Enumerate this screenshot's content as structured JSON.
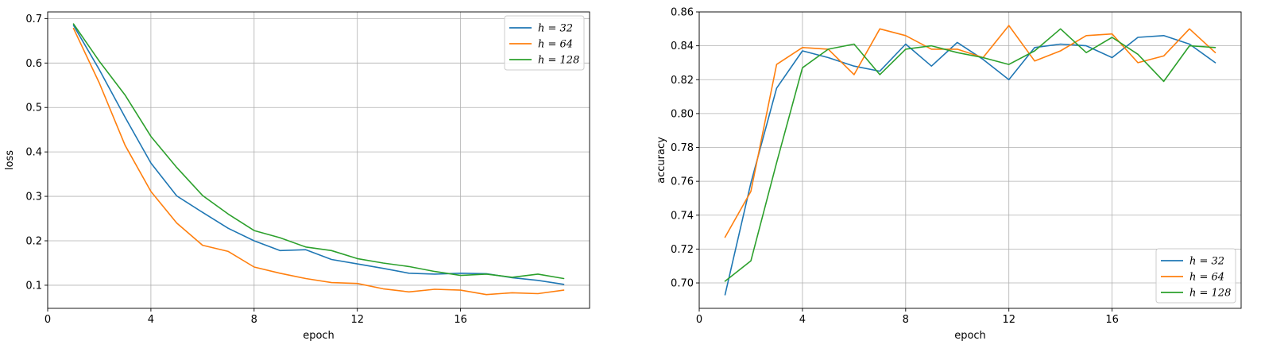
{
  "chart_data": [
    {
      "type": "line",
      "xlabel": "epoch",
      "ylabel": "loss",
      "xlim": [
        0,
        21
      ],
      "ylim": [
        0.048,
        0.715
      ],
      "xticks": [
        0,
        4,
        8,
        12,
        16
      ],
      "xtick_labels": [
        "0",
        "4",
        "8",
        "12",
        "16"
      ],
      "yticks": [
        0.1,
        0.2,
        0.3,
        0.4,
        0.5,
        0.6,
        0.7
      ],
      "ytick_labels": [
        "0.1",
        "0.2",
        "0.3",
        "0.4",
        "0.5",
        "0.6",
        "0.7"
      ],
      "grid": true,
      "legend_position": "top-right",
      "x": [
        1,
        2,
        3,
        4,
        5,
        6,
        7,
        8,
        9,
        10,
        11,
        12,
        13,
        14,
        15,
        16,
        17,
        18,
        19,
        20
      ],
      "series": [
        {
          "name": "h = 32",
          "color": "#1f77b4",
          "values": [
            0.685,
            0.585,
            0.478,
            0.375,
            0.301,
            0.264,
            0.228,
            0.2,
            0.178,
            0.18,
            0.158,
            0.148,
            0.138,
            0.127,
            0.125,
            0.127,
            0.126,
            0.117,
            0.111,
            0.102
          ]
        },
        {
          "name": "h = 64",
          "color": "#ff7f0e",
          "values": [
            0.678,
            0.555,
            0.415,
            0.311,
            0.24,
            0.19,
            0.176,
            0.141,
            0.127,
            0.115,
            0.106,
            0.104,
            0.092,
            0.085,
            0.091,
            0.089,
            0.079,
            0.083,
            0.081,
            0.089
          ]
        },
        {
          "name": "h = 128",
          "color": "#2ca02c",
          "values": [
            0.688,
            0.604,
            0.528,
            0.435,
            0.365,
            0.302,
            0.26,
            0.223,
            0.207,
            0.186,
            0.178,
            0.16,
            0.15,
            0.142,
            0.131,
            0.122,
            0.125,
            0.118,
            0.125,
            0.115
          ]
        }
      ]
    },
    {
      "type": "line",
      "xlabel": "epoch",
      "ylabel": "accuracy",
      "xlim": [
        0,
        21
      ],
      "ylim": [
        0.685,
        0.86
      ],
      "xticks": [
        0,
        4,
        8,
        12,
        16
      ],
      "xtick_labels": [
        "0",
        "4",
        "8",
        "12",
        "16"
      ],
      "yticks": [
        0.7,
        0.72,
        0.74,
        0.76,
        0.78,
        0.8,
        0.82,
        0.84,
        0.86
      ],
      "ytick_labels": [
        "0.70",
        "0.72",
        "0.74",
        "0.76",
        "0.78",
        "0.80",
        "0.82",
        "0.84",
        "0.86"
      ],
      "grid": true,
      "legend_position": "bottom-right",
      "x": [
        1,
        2,
        3,
        4,
        5,
        6,
        7,
        8,
        9,
        10,
        11,
        12,
        13,
        14,
        15,
        16,
        17,
        18,
        19,
        20
      ],
      "series": [
        {
          "name": "h = 32",
          "color": "#1f77b4",
          "values": [
            0.693,
            0.759,
            0.815,
            0.837,
            0.833,
            0.828,
            0.825,
            0.841,
            0.828,
            0.842,
            0.832,
            0.82,
            0.839,
            0.841,
            0.84,
            0.833,
            0.845,
            0.846,
            0.841,
            0.83
          ]
        },
        {
          "name": "h = 64",
          "color": "#ff7f0e",
          "values": [
            0.727,
            0.754,
            0.829,
            0.839,
            0.838,
            0.823,
            0.85,
            0.846,
            0.838,
            0.838,
            0.833,
            0.852,
            0.831,
            0.837,
            0.846,
            0.847,
            0.83,
            0.834,
            0.85,
            0.836
          ]
        },
        {
          "name": "h = 128",
          "color": "#2ca02c",
          "values": [
            0.701,
            0.713,
            0.771,
            0.827,
            0.838,
            0.841,
            0.823,
            0.838,
            0.84,
            0.836,
            0.833,
            0.829,
            0.837,
            0.85,
            0.836,
            0.845,
            0.835,
            0.819,
            0.84,
            0.839
          ]
        }
      ]
    }
  ]
}
